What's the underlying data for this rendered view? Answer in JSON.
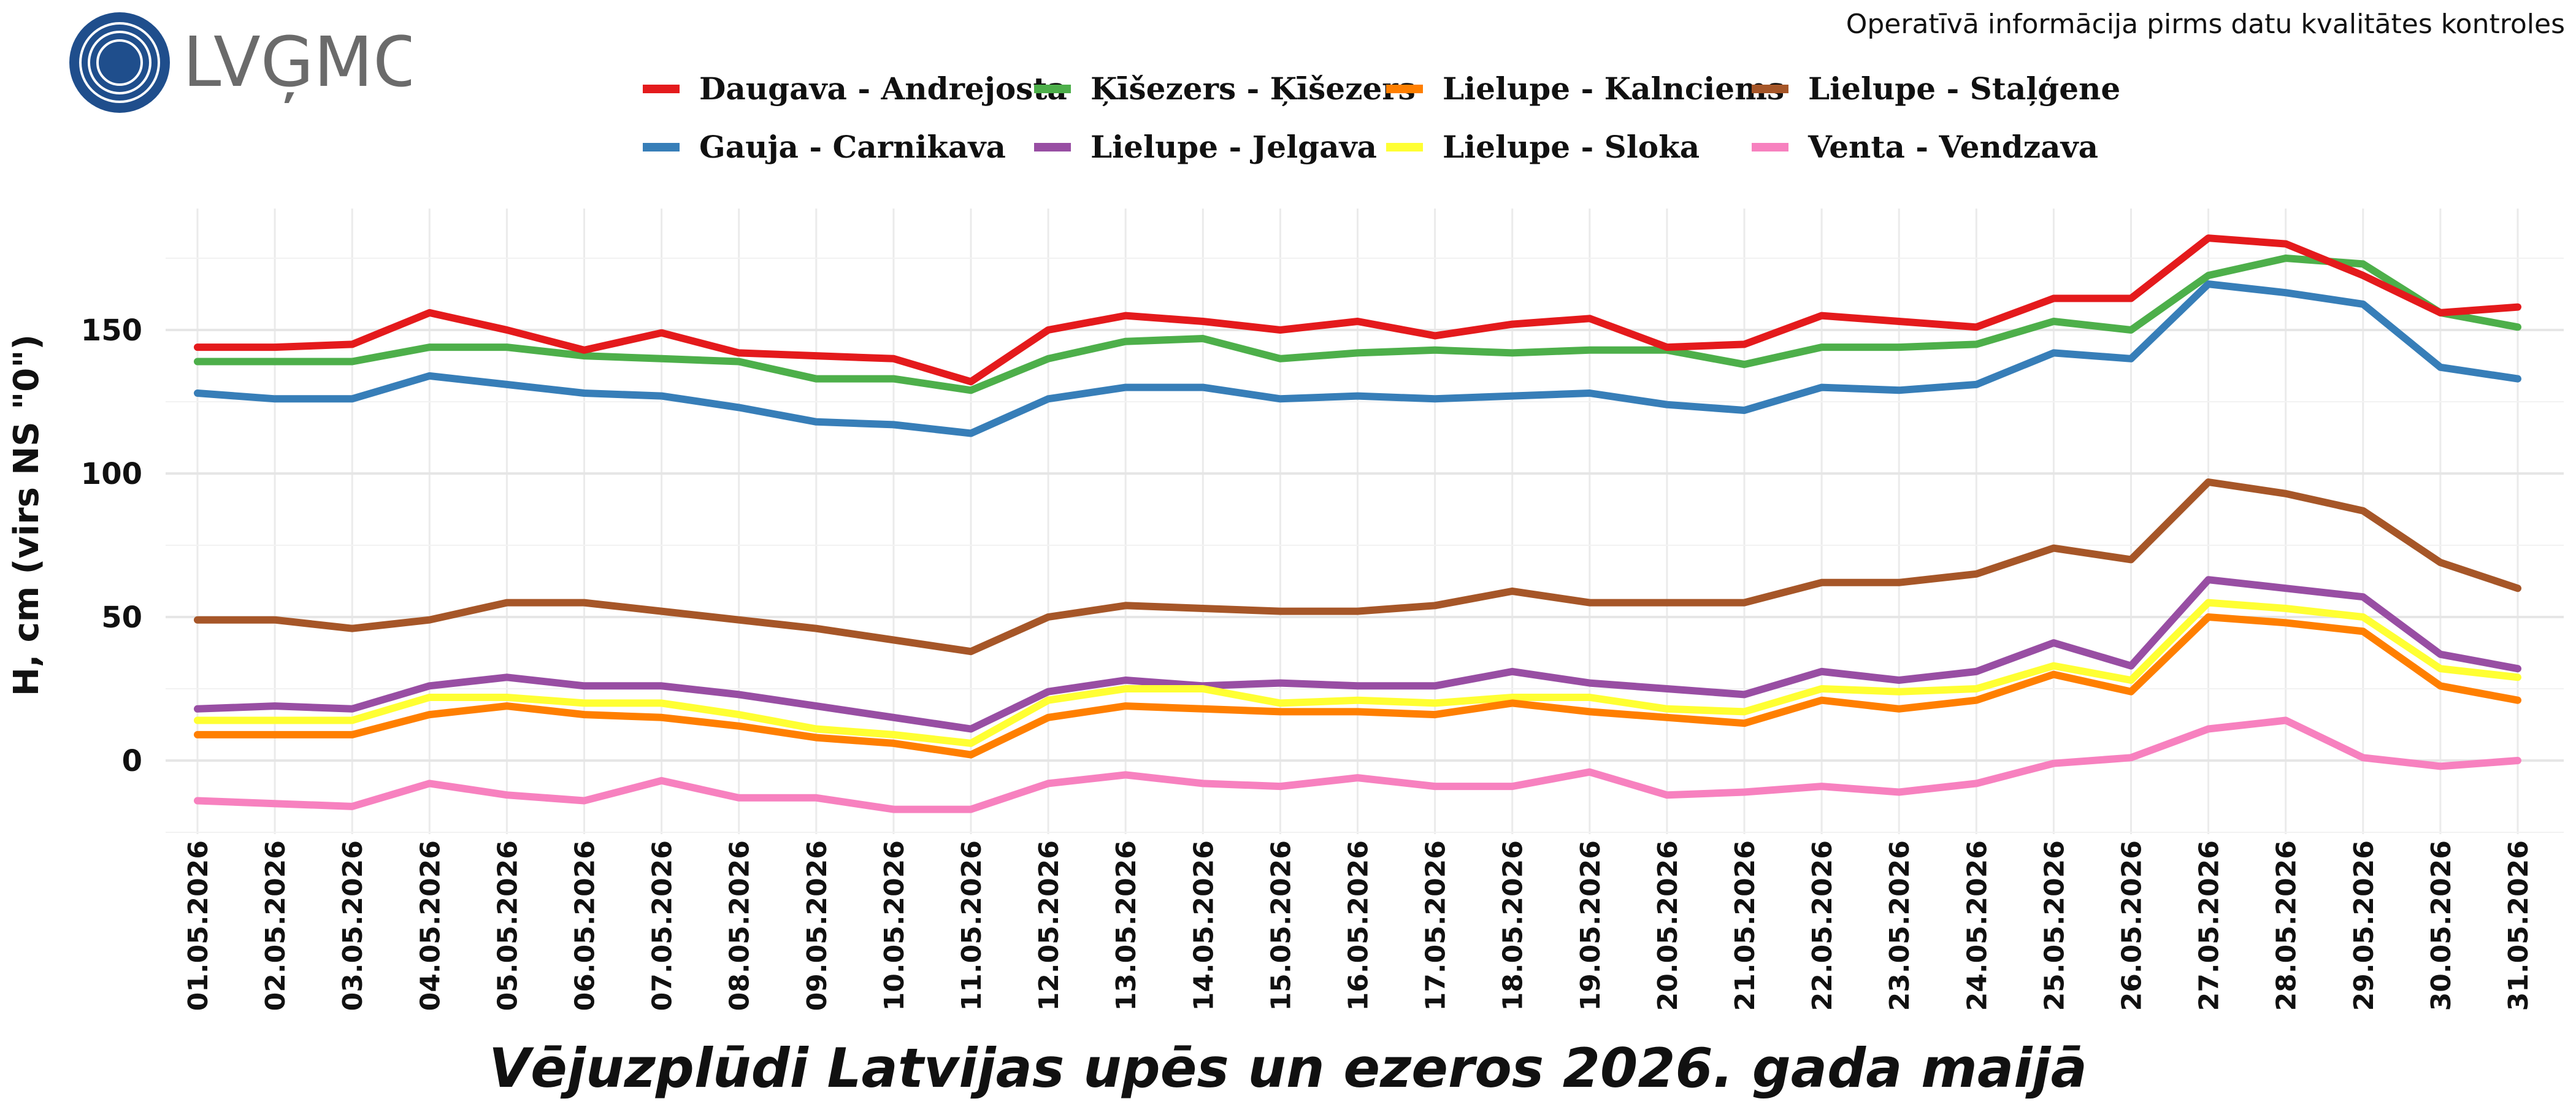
{
  "logo": {
    "text": "LVĢMC",
    "colors": {
      "circle": "#1f4e8c",
      "text": "#6b6b6b"
    }
  },
  "notice": "Operatīvā informācija pirms datu kvalitātes kontroles",
  "chart_data": {
    "type": "line",
    "title": "Vējuzplūdi Latvijas upēs un ezeros 2026. gada maijā",
    "xlabel": "",
    "ylabel": "H, cm (virs NS \"0\")",
    "ylim": [
      -25,
      195
    ],
    "yticks": [
      0,
      50,
      100,
      150
    ],
    "grid": true,
    "legend_position": "top",
    "categories": [
      "01.05.2026",
      "02.05.2026",
      "03.05.2026",
      "04.05.2026",
      "05.05.2026",
      "06.05.2026",
      "07.05.2026",
      "08.05.2026",
      "09.05.2026",
      "10.05.2026",
      "11.05.2026",
      "12.05.2026",
      "13.05.2026",
      "14.05.2026",
      "15.05.2026",
      "16.05.2026",
      "17.05.2026",
      "18.05.2026",
      "19.05.2026",
      "20.05.2026",
      "21.05.2026",
      "22.05.2026",
      "23.05.2026",
      "24.05.2026",
      "25.05.2026",
      "26.05.2026",
      "27.05.2026",
      "28.05.2026",
      "29.05.2026",
      "30.05.2026",
      "31.05.2026"
    ],
    "series": [
      {
        "name": "Daugava - Andrejosta",
        "color": "#e41a1c",
        "values": [
          144,
          144,
          145,
          156,
          150,
          143,
          149,
          142,
          141,
          140,
          132,
          150,
          155,
          153,
          150,
          153,
          148,
          152,
          154,
          144,
          145,
          155,
          153,
          151,
          161,
          161,
          182,
          180,
          169,
          156,
          158
        ]
      },
      {
        "name": "Gauja - Carnikava",
        "color": "#377eb8",
        "values": [
          128,
          126,
          126,
          134,
          131,
          128,
          127,
          123,
          118,
          117,
          114,
          126,
          130,
          130,
          126,
          127,
          126,
          127,
          128,
          124,
          122,
          130,
          129,
          131,
          142,
          140,
          166,
          163,
          159,
          137,
          133
        ]
      },
      {
        "name": "Ķīšezers - Ķīšezers",
        "color": "#4daf4a",
        "values": [
          139,
          139,
          139,
          144,
          144,
          141,
          140,
          139,
          133,
          133,
          129,
          140,
          146,
          147,
          140,
          142,
          143,
          142,
          143,
          143,
          138,
          144,
          144,
          145,
          153,
          150,
          169,
          175,
          173,
          156,
          151
        ]
      },
      {
        "name": "Lielupe - Jelgava",
        "color": "#984ea3",
        "values": [
          18,
          19,
          18,
          26,
          29,
          26,
          26,
          23,
          19,
          15,
          11,
          24,
          28,
          26,
          27,
          26,
          26,
          31,
          27,
          25,
          23,
          31,
          28,
          31,
          41,
          33,
          63,
          60,
          57,
          37,
          32
        ]
      },
      {
        "name": "Lielupe - Kalnciems",
        "color": "#ff7f00",
        "values": [
          9,
          9,
          9,
          16,
          19,
          16,
          15,
          12,
          8,
          6,
          2,
          15,
          19,
          18,
          17,
          17,
          16,
          20,
          17,
          15,
          13,
          21,
          18,
          21,
          30,
          24,
          50,
          48,
          45,
          26,
          21
        ]
      },
      {
        "name": "Lielupe - Sloka",
        "color": "#ffff33",
        "values": [
          14,
          14,
          14,
          22,
          22,
          20,
          20,
          16,
          11,
          9,
          6,
          21,
          25,
          25,
          20,
          21,
          20,
          22,
          22,
          18,
          17,
          25,
          24,
          25,
          33,
          28,
          55,
          53,
          50,
          32,
          29
        ]
      },
      {
        "name": "Lielupe - Staļģene",
        "color": "#a65628",
        "values": [
          49,
          49,
          46,
          49,
          55,
          55,
          52,
          49,
          46,
          42,
          38,
          50,
          54,
          53,
          52,
          52,
          54,
          59,
          55,
          55,
          55,
          62,
          62,
          65,
          74,
          70,
          97,
          93,
          87,
          69,
          60
        ]
      },
      {
        "name": "Venta - Vendzava",
        "color": "#f781bf",
        "values": [
          -14,
          -15,
          -16,
          -8,
          -12,
          -14,
          -7,
          -13,
          -13,
          -17,
          -17,
          -8,
          -5,
          -8,
          -9,
          -6,
          -9,
          -9,
          -4,
          -12,
          -11,
          -9,
          -11,
          -8,
          -1,
          1,
          11,
          14,
          1,
          -2,
          0
        ]
      }
    ]
  }
}
